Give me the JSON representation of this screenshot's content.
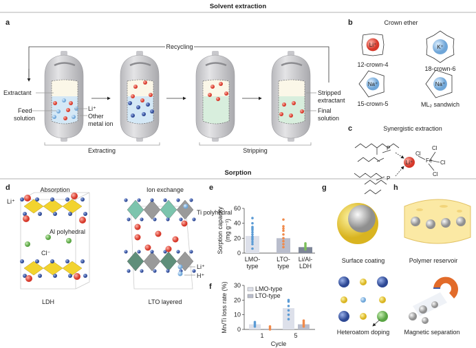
{
  "sections": {
    "top": "Solvent extraction",
    "bottom": "Sorption"
  },
  "panels": {
    "a": "a",
    "b": "b",
    "c": "c",
    "d": "d",
    "e": "e",
    "f": "f",
    "g": "g",
    "h": "h"
  },
  "panel_a": {
    "recycling": "Recycling",
    "extractant": "Extractant",
    "feed1": "Feed",
    "feed2": "solution",
    "li": "Li⁺",
    "other1": "Other",
    "other2": "metal ion",
    "stripped1": "Stripped",
    "stripped2": "extractant",
    "final1": "Final",
    "final2": "solution",
    "extracting": "Extracting",
    "stripping": "Stripping"
  },
  "panel_b": {
    "title": "Crown ether",
    "items": [
      {
        "label": "12-crown-4",
        "ion": "Li⁺",
        "color": "#e8564a"
      },
      {
        "label": "18-crown-6",
        "ion": "K⁺",
        "color": "#9cc4e4"
      },
      {
        "label": "15-crown-5",
        "ion": "Na⁺",
        "color": "#9cc4e4"
      },
      {
        "label": "ML₂ sandwich",
        "ion": "Na⁺",
        "color": "#9cc4e4"
      }
    ]
  },
  "panel_c": {
    "title": "Synergistic extraction",
    "li": "Li⁺",
    "fe": "Fe",
    "p": "P",
    "o": "O",
    "cl": "Cl"
  },
  "panel_d": {
    "absorption": "Absorption",
    "ion_exchange": "Ion exchange",
    "li": "Li⁺",
    "al": "Al polyhedral",
    "cl": "Cl⁻",
    "ldh": "LDH",
    "ti": "Ti polyhedral",
    "li2": "Li⁺",
    "h": "H⁺",
    "lto": "LTO layered"
  },
  "chart_data": [
    {
      "type": "bar",
      "panel": "e",
      "ylabel": "Sorption capacity",
      "yunit": "(mg g⁻¹)",
      "ylim": [
        0,
        60
      ],
      "yticks": [
        "0",
        "20",
        "40",
        "60"
      ],
      "categories": [
        "LMO-type",
        "LTO-type",
        "Li/Al-LDH"
      ],
      "cat_lines": [
        [
          "LMO-",
          "type"
        ],
        [
          "LTO-",
          "type"
        ],
        [
          "Li/Al-",
          "LDH"
        ]
      ],
      "values": [
        23,
        20,
        8
      ],
      "bar_colors": [
        "#dde0ea",
        "#b9bdcc",
        "#7e8698"
      ],
      "point_colors": [
        "#5b9bd5",
        "#f08a4b",
        "#7cc05a"
      ],
      "points": [
        [
          6,
          12,
          15,
          18,
          20,
          22,
          25,
          28,
          31,
          33,
          35,
          40,
          47
        ],
        [
          8,
          12,
          16,
          20,
          25,
          30,
          33,
          36,
          45
        ],
        [
          5,
          7,
          9,
          11,
          13
        ]
      ]
    },
    {
      "type": "bar",
      "panel": "f",
      "ylabel": "Mn/Ti loss rate (%)",
      "xlabel": "Cycle",
      "ylim": [
        0,
        30
      ],
      "yticks": [
        "0",
        "10",
        "20",
        "30"
      ],
      "categories": [
        "1",
        "5"
      ],
      "series": [
        {
          "name": "LMO-type",
          "values": [
            3.5,
            14.5
          ],
          "color": "#dde0ea",
          "point_color": "#5b9bd5",
          "points": [
            [
              2,
              3,
              4,
              5
            ],
            [
              7,
              10,
              13,
              16,
              19,
              20
            ]
          ]
        },
        {
          "name": "LTO-type",
          "values": [
            0.5,
            3.5
          ],
          "color": "#b9bdcc",
          "point_color": "#f08a4b",
          "points": [
            [
              0,
              1,
              2
            ],
            [
              2,
              3,
              4,
              5,
              6
            ]
          ]
        }
      ]
    }
  ],
  "panel_g": {
    "coating": "Surface coating",
    "doping": "Heteroatom doping"
  },
  "panel_h": {
    "reservoir": "Polymer reservoir",
    "magnetic": "Magnetic separation"
  }
}
